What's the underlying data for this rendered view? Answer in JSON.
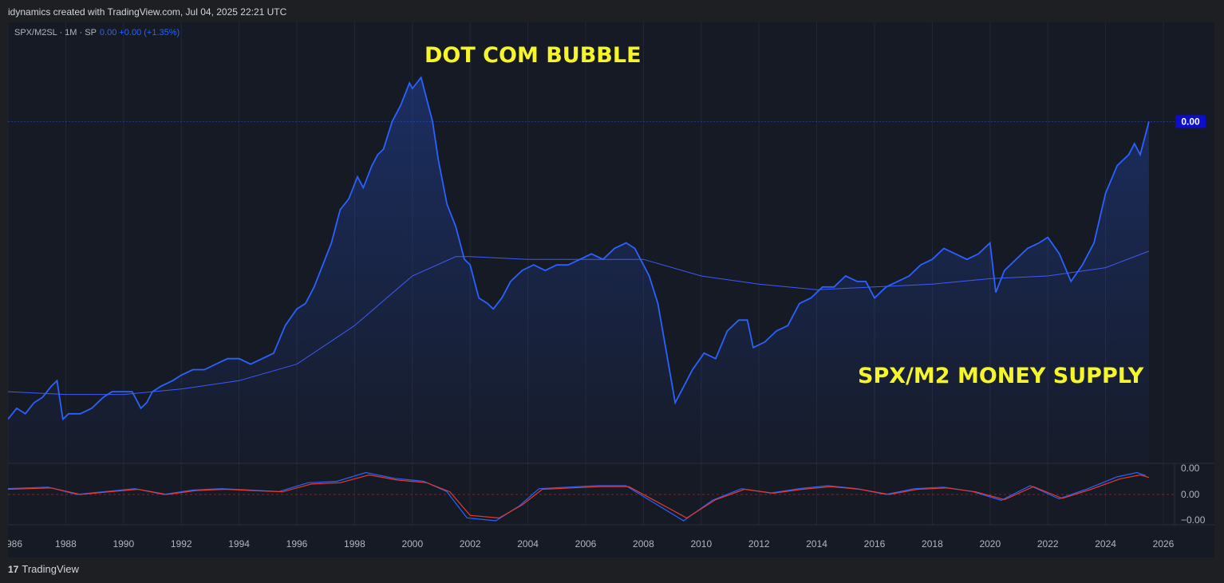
{
  "header": {
    "credit": "idynamics created with TradingView.com, Jul 04, 2025 22:21 UTC"
  },
  "legend": {
    "label": "SPX/M2SL · 1M · SP",
    "values": "0.00  +0.00 (+1.35%)"
  },
  "footer": {
    "logo_mark": "17",
    "logo_text": "TradingView"
  },
  "colors": {
    "background": "#161a25",
    "price_line": "#2962ff",
    "moving_average": "#3d5afe",
    "oscillator_signal": "#e53935",
    "annotation": "#f5f52a",
    "price_badge": "#0d0dcf"
  },
  "chart_data": {
    "type": "area",
    "annotations": [
      "DOT COM BUBBLE",
      "SPX/M2 MONEY SUPPLY"
    ],
    "price_label": "0.00",
    "x_ticks": [
      "986",
      "1988",
      "1990",
      "1992",
      "1994",
      "1996",
      "1998",
      "2000",
      "2002",
      "2004",
      "2006",
      "2008",
      "2010",
      "2012",
      "2014",
      "2016",
      "2018",
      "2020",
      "2022",
      "2024",
      "2026"
    ],
    "xlim": [
      1986,
      2026
    ],
    "ylim": [
      0.18,
      0.98
    ],
    "grid": true,
    "series": [
      {
        "x": [
          1986.0,
          1986.3,
          1986.6,
          1986.9,
          1987.2,
          1987.5,
          1987.7,
          1987.9,
          1988.1,
          1988.5,
          1988.9,
          1989.3,
          1989.6,
          1989.9,
          1990.3,
          1990.6,
          1990.8,
          1991.0,
          1991.3,
          1991.7,
          1992.0,
          1992.4,
          1992.8,
          1993.2,
          1993.6,
          1994.0,
          1994.4,
          1994.8,
          1995.2,
          1995.6,
          1996.0,
          1996.3,
          1996.6,
          1996.9,
          1997.2,
          1997.5,
          1997.8,
          1998.1,
          1998.3,
          1998.6,
          1998.8,
          1999.0,
          1999.3,
          1999.6,
          1999.9,
          2000.0,
          2000.3,
          2000.5,
          2000.7,
          2000.9,
          2001.2,
          2001.5,
          2001.8,
          2002.0,
          2002.3,
          2002.6,
          2002.8,
          2003.1,
          2003.4,
          2003.8,
          2004.2,
          2004.6,
          2005.0,
          2005.4,
          2005.8,
          2006.2,
          2006.6,
          2007.0,
          2007.4,
          2007.7,
          2007.9,
          2008.2,
          2008.5,
          2008.8,
          2009.1,
          2009.4,
          2009.7,
          2010.1,
          2010.5,
          2010.9,
          2011.3,
          2011.6,
          2011.8,
          2012.2,
          2012.6,
          2013.0,
          2013.4,
          2013.8,
          2014.2,
          2014.6,
          2015.0,
          2015.4,
          2015.7,
          2016.0,
          2016.4,
          2016.8,
          2017.2,
          2017.6,
          2018.0,
          2018.4,
          2018.8,
          2019.2,
          2019.6,
          2020.0,
          2020.2,
          2020.5,
          2020.9,
          2021.3,
          2021.7,
          2022.0,
          2022.4,
          2022.8,
          2023.2,
          2023.6,
          2024.0,
          2024.4,
          2024.8,
          2025.0,
          2025.2,
          2025.5
        ],
        "y": [
          0.26,
          0.28,
          0.27,
          0.29,
          0.3,
          0.32,
          0.33,
          0.26,
          0.27,
          0.27,
          0.28,
          0.3,
          0.31,
          0.31,
          0.31,
          0.28,
          0.29,
          0.31,
          0.32,
          0.33,
          0.34,
          0.35,
          0.35,
          0.36,
          0.37,
          0.37,
          0.36,
          0.37,
          0.38,
          0.43,
          0.46,
          0.47,
          0.5,
          0.54,
          0.58,
          0.64,
          0.66,
          0.7,
          0.68,
          0.72,
          0.74,
          0.75,
          0.8,
          0.83,
          0.87,
          0.86,
          0.88,
          0.84,
          0.8,
          0.73,
          0.65,
          0.61,
          0.55,
          0.54,
          0.48,
          0.47,
          0.46,
          0.48,
          0.51,
          0.53,
          0.54,
          0.53,
          0.54,
          0.54,
          0.55,
          0.56,
          0.55,
          0.57,
          0.58,
          0.57,
          0.55,
          0.52,
          0.47,
          0.38,
          0.29,
          0.32,
          0.35,
          0.38,
          0.37,
          0.42,
          0.44,
          0.44,
          0.39,
          0.4,
          0.42,
          0.43,
          0.47,
          0.48,
          0.5,
          0.5,
          0.52,
          0.51,
          0.51,
          0.48,
          0.5,
          0.51,
          0.52,
          0.54,
          0.55,
          0.57,
          0.56,
          0.55,
          0.56,
          0.58,
          0.49,
          0.53,
          0.55,
          0.57,
          0.58,
          0.59,
          0.56,
          0.51,
          0.54,
          0.58,
          0.67,
          0.72,
          0.74,
          0.76,
          0.74,
          0.8
        ]
      },
      {
        "x": [
          1986,
          1988,
          1990,
          1992,
          1994,
          1996,
          1998,
          2000,
          2001.5,
          2002,
          2004,
          2006,
          2008,
          2010,
          2012,
          2014,
          2016,
          2018,
          2020,
          2022,
          2024,
          2025.5
        ],
        "y": [
          0.31,
          0.305,
          0.305,
          0.315,
          0.33,
          0.36,
          0.43,
          0.52,
          0.555,
          0.555,
          0.55,
          0.55,
          0.55,
          0.52,
          0.505,
          0.495,
          0.5,
          0.505,
          0.515,
          0.52,
          0.535,
          0.565
        ]
      }
    ],
    "oscillator": {
      "yticks": [
        "0.00",
        "0.00",
        "−0.00"
      ],
      "ylim": [
        -1.1,
        1.1
      ],
      "x": [
        1986,
        1987.5,
        1988.5,
        1989.5,
        1990.5,
        1991.5,
        1992.5,
        1993.5,
        1994.5,
        1995.5,
        1996.5,
        1997.5,
        1998.5,
        1999.5,
        2000.5,
        2001.3,
        2002,
        2003,
        2003.8,
        2004.5,
        2005.5,
        2006.5,
        2007.5,
        2008.5,
        2009.5,
        2010.5,
        2011.5,
        2012.5,
        2013.5,
        2014.5,
        2015.5,
        2016.5,
        2017.5,
        2018.5,
        2019.5,
        2020.5,
        2021.5,
        2022.5,
        2023.5,
        2024.5,
        2025.2,
        2025.5
      ],
      "y": [
        0.2,
        0.25,
        0,
        0.1,
        0.2,
        0,
        0.15,
        0.2,
        0.15,
        0.1,
        0.4,
        0.45,
        0.75,
        0.55,
        0.45,
        0.1,
        -0.8,
        -0.9,
        -0.4,
        0.2,
        0.25,
        0.3,
        0.3,
        -0.3,
        -0.9,
        -0.2,
        0.2,
        0.05,
        0.2,
        0.3,
        0.2,
        0,
        0.2,
        0.25,
        0.1,
        -0.2,
        0.3,
        -0.15,
        0.2,
        0.6,
        0.75,
        0.65
      ]
    }
  }
}
